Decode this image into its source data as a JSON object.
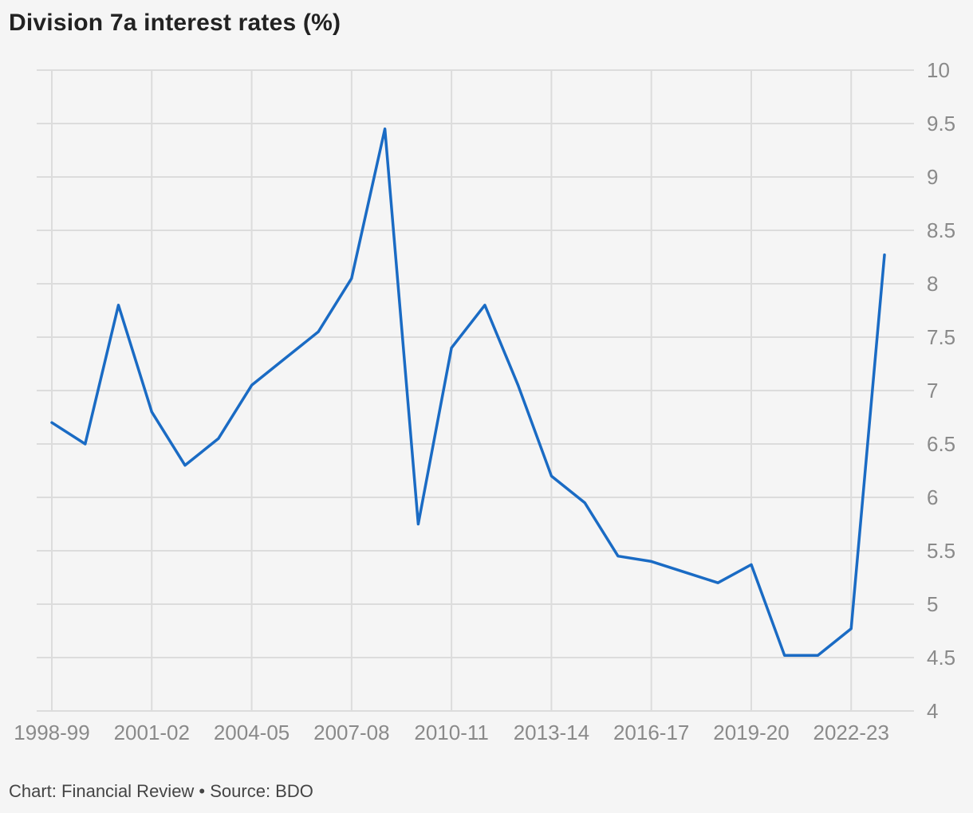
{
  "title": "Division 7a interest rates (%)",
  "footer": {
    "credit": "Chart: Financial Review",
    "separator": " • ",
    "source": "Source: BDO"
  },
  "colors": {
    "line": "#1a6bc4",
    "grid": "#dcdcdc",
    "tick": "#8a8a8a"
  },
  "chart_data": {
    "type": "line",
    "title": "Division 7a interest rates (%)",
    "xlabel": "",
    "ylabel": "",
    "ylim": [
      4,
      10
    ],
    "y_ticks": [
      4,
      4.5,
      5,
      5.5,
      6,
      6.5,
      7,
      7.5,
      8,
      8.5,
      9,
      9.5,
      10
    ],
    "y_axis_side": "right",
    "grid": true,
    "x_tick_labels": [
      "1998-99",
      "2001-02",
      "2004-05",
      "2007-08",
      "2010-11",
      "2013-14",
      "2016-17",
      "2019-20",
      "2022-23"
    ],
    "categories": [
      "1998-99",
      "1999-00",
      "2000-01",
      "2001-02",
      "2002-03",
      "2003-04",
      "2004-05",
      "2005-06",
      "2006-07",
      "2007-08",
      "2008-09",
      "2009-10",
      "2010-11",
      "2011-12",
      "2012-13",
      "2013-14",
      "2014-15",
      "2015-16",
      "2016-17",
      "2017-18",
      "2018-19",
      "2019-20",
      "2020-21",
      "2021-22",
      "2022-23",
      "2023-24"
    ],
    "series": [
      {
        "values": [
          6.7,
          6.5,
          7.8,
          6.8,
          6.3,
          6.55,
          7.05,
          7.3,
          7.55,
          8.05,
          9.45,
          5.75,
          7.4,
          7.8,
          7.05,
          6.2,
          5.95,
          5.45,
          5.4,
          5.3,
          5.2,
          5.37,
          4.52,
          4.52,
          4.77,
          8.27
        ]
      }
    ]
  }
}
